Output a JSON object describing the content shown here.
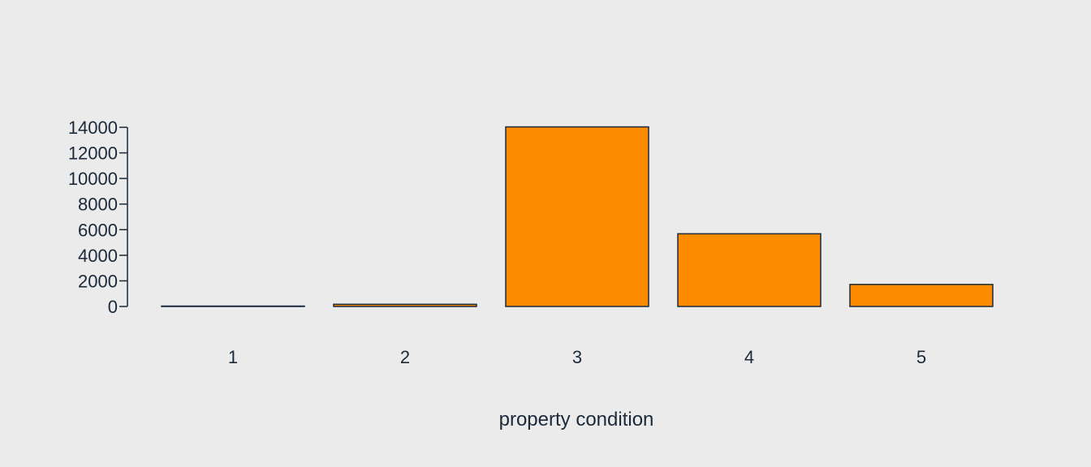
{
  "chart_data": {
    "type": "bar",
    "title": "",
    "xlabel": "property condition",
    "ylabel": "",
    "categories": [
      "1",
      "2",
      "3",
      "4",
      "5"
    ],
    "values": [
      30,
      170,
      14030,
      5680,
      1720
    ],
    "ylim": [
      0,
      14000
    ],
    "yticks": [
      0,
      2000,
      4000,
      6000,
      8000,
      10000,
      12000,
      14000
    ],
    "grid": false,
    "legend": "none",
    "colors": {
      "bar_fill": "#ff8c00",
      "bar_stroke": "#1a2a3a",
      "axis": "#1a2a3a",
      "text": "#1a2a3a",
      "background": "#ebebeb"
    }
  }
}
